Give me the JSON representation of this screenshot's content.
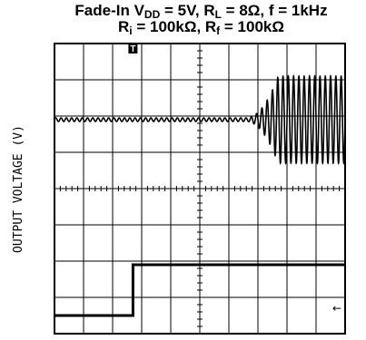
{
  "chart_data": {
    "type": "line",
    "title_parts": {
      "line1": [
        "Fade-In V",
        "DD",
        " = 5V, R",
        "L",
        " = 8Ω, f = 1kHz"
      ],
      "line2": [
        "R",
        "i",
        " = 100kΩ, R",
        "f",
        " = 100kΩ"
      ]
    },
    "xlabel": "",
    "ylabel": "OUTPUT VOLTAGE (V)",
    "trigger_marker": "T",
    "grid": {
      "divisions_x": 10,
      "divisions_y": 8,
      "minor_ticks_on_center_lines": true
    },
    "xlim": [
      0,
      10
    ],
    "ylim": [
      -4,
      4
    ],
    "series": [
      {
        "kind": "output_sine",
        "baseline_div": 1.9,
        "idle_ripple_div": 0.05,
        "fade_start_div": 6.6,
        "fade_full_div": 7.7,
        "full_amplitude_div": 1.2,
        "cycles_per_div": 5.5
      },
      {
        "kind": "control_step",
        "low_div": -3.5,
        "high_div": -2.1,
        "step_at_div": 2.7
      }
    ],
    "ground_marker": {
      "y_div": -3.3,
      "glyph": "←"
    }
  }
}
